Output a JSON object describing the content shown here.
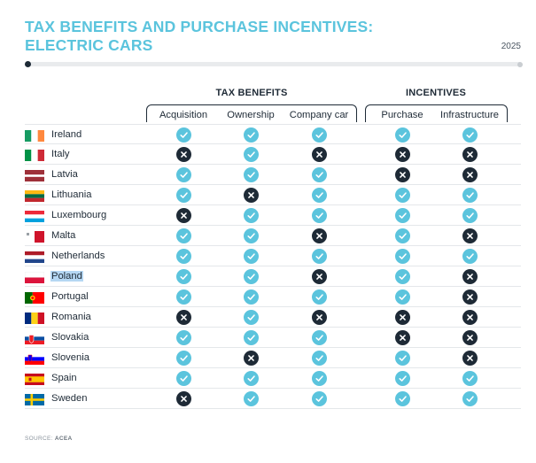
{
  "title_line1": "TAX BENEFITS AND PURCHASE INCENTIVES:",
  "title_line2": "ELECTRIC CARS",
  "year": "2025",
  "groups": {
    "tax": "TAX BENEFITS",
    "incentives": "INCENTIVES"
  },
  "columns": [
    "Acquisition",
    "Ownership",
    "Company car",
    "Purchase",
    "Infrastructure"
  ],
  "colors": {
    "yes": "#5bc4dd",
    "no": "#1e2a36",
    "title": "#5bc4dd"
  },
  "rows": [
    {
      "country": "Ireland",
      "values": [
        1,
        1,
        1,
        1,
        1
      ],
      "flag": "ireland"
    },
    {
      "country": "Italy",
      "values": [
        0,
        1,
        0,
        0,
        0
      ],
      "flag": "italy"
    },
    {
      "country": "Latvia",
      "values": [
        1,
        1,
        1,
        0,
        0
      ],
      "flag": "latvia"
    },
    {
      "country": "Lithuania",
      "values": [
        1,
        0,
        1,
        1,
        1
      ],
      "flag": "lithuania"
    },
    {
      "country": "Luxembourg",
      "values": [
        0,
        1,
        1,
        1,
        1
      ],
      "flag": "luxembourg"
    },
    {
      "country": "Malta",
      "values": [
        1,
        1,
        0,
        1,
        0
      ],
      "flag": "malta"
    },
    {
      "country": "Netherlands",
      "values": [
        1,
        1,
        1,
        1,
        1
      ],
      "flag": "netherlands"
    },
    {
      "country": "Poland",
      "values": [
        1,
        1,
        0,
        1,
        0
      ],
      "flag": "poland"
    },
    {
      "country": "Portugal",
      "values": [
        1,
        1,
        1,
        1,
        0
      ],
      "flag": "portugal"
    },
    {
      "country": "Romania",
      "values": [
        0,
        1,
        0,
        0,
        0
      ],
      "flag": "romania"
    },
    {
      "country": "Slovakia",
      "values": [
        1,
        1,
        1,
        0,
        0
      ],
      "flag": "slovakia"
    },
    {
      "country": "Slovenia",
      "values": [
        1,
        0,
        1,
        1,
        0
      ],
      "flag": "slovenia"
    },
    {
      "country": "Spain",
      "values": [
        1,
        1,
        1,
        1,
        1
      ],
      "flag": "spain"
    },
    {
      "country": "Sweden",
      "values": [
        0,
        1,
        1,
        1,
        1
      ],
      "flag": "sweden"
    }
  ],
  "selected_country": "Poland",
  "source": {
    "label": "SOURCE:",
    "name": "ACEA"
  }
}
